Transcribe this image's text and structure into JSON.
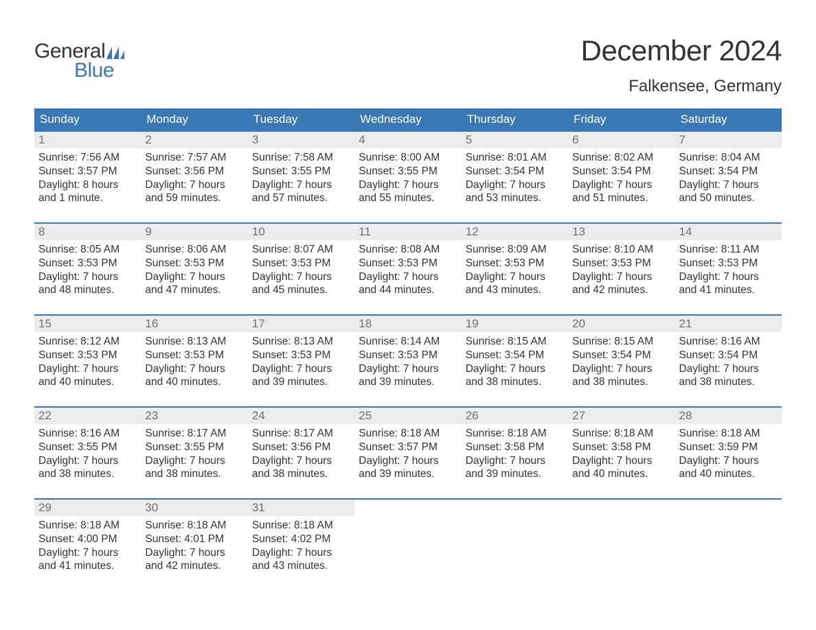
{
  "logo": {
    "text_top": "General",
    "text_bottom": "Blue",
    "flag_color": "#3a78b5"
  },
  "title": "December 2024",
  "location": "Falkensee, Germany",
  "colors": {
    "header_bg": "#3a78b5",
    "header_text": "#ffffff",
    "daynum_bg": "#ececec",
    "daynum_text": "#6f6f6f",
    "body_text": "#333333",
    "row_border": "#3a78b5",
    "page_bg": "#ffffff"
  },
  "typography": {
    "title_fontsize": 42,
    "location_fontsize": 24,
    "weekday_fontsize": 17,
    "daynum_fontsize": 17,
    "body_fontsize": 15.5
  },
  "weekdays": [
    "Sunday",
    "Monday",
    "Tuesday",
    "Wednesday",
    "Thursday",
    "Friday",
    "Saturday"
  ],
  "weeks": [
    [
      {
        "day": "1",
        "sunrise": "Sunrise: 7:56 AM",
        "sunset": "Sunset: 3:57 PM",
        "dl1": "Daylight: 8 hours",
        "dl2": "and 1 minute."
      },
      {
        "day": "2",
        "sunrise": "Sunrise: 7:57 AM",
        "sunset": "Sunset: 3:56 PM",
        "dl1": "Daylight: 7 hours",
        "dl2": "and 59 minutes."
      },
      {
        "day": "3",
        "sunrise": "Sunrise: 7:58 AM",
        "sunset": "Sunset: 3:55 PM",
        "dl1": "Daylight: 7 hours",
        "dl2": "and 57 minutes."
      },
      {
        "day": "4",
        "sunrise": "Sunrise: 8:00 AM",
        "sunset": "Sunset: 3:55 PM",
        "dl1": "Daylight: 7 hours",
        "dl2": "and 55 minutes."
      },
      {
        "day": "5",
        "sunrise": "Sunrise: 8:01 AM",
        "sunset": "Sunset: 3:54 PM",
        "dl1": "Daylight: 7 hours",
        "dl2": "and 53 minutes."
      },
      {
        "day": "6",
        "sunrise": "Sunrise: 8:02 AM",
        "sunset": "Sunset: 3:54 PM",
        "dl1": "Daylight: 7 hours",
        "dl2": "and 51 minutes."
      },
      {
        "day": "7",
        "sunrise": "Sunrise: 8:04 AM",
        "sunset": "Sunset: 3:54 PM",
        "dl1": "Daylight: 7 hours",
        "dl2": "and 50 minutes."
      }
    ],
    [
      {
        "day": "8",
        "sunrise": "Sunrise: 8:05 AM",
        "sunset": "Sunset: 3:53 PM",
        "dl1": "Daylight: 7 hours",
        "dl2": "and 48 minutes."
      },
      {
        "day": "9",
        "sunrise": "Sunrise: 8:06 AM",
        "sunset": "Sunset: 3:53 PM",
        "dl1": "Daylight: 7 hours",
        "dl2": "and 47 minutes."
      },
      {
        "day": "10",
        "sunrise": "Sunrise: 8:07 AM",
        "sunset": "Sunset: 3:53 PM",
        "dl1": "Daylight: 7 hours",
        "dl2": "and 45 minutes."
      },
      {
        "day": "11",
        "sunrise": "Sunrise: 8:08 AM",
        "sunset": "Sunset: 3:53 PM",
        "dl1": "Daylight: 7 hours",
        "dl2": "and 44 minutes."
      },
      {
        "day": "12",
        "sunrise": "Sunrise: 8:09 AM",
        "sunset": "Sunset: 3:53 PM",
        "dl1": "Daylight: 7 hours",
        "dl2": "and 43 minutes."
      },
      {
        "day": "13",
        "sunrise": "Sunrise: 8:10 AM",
        "sunset": "Sunset: 3:53 PM",
        "dl1": "Daylight: 7 hours",
        "dl2": "and 42 minutes."
      },
      {
        "day": "14",
        "sunrise": "Sunrise: 8:11 AM",
        "sunset": "Sunset: 3:53 PM",
        "dl1": "Daylight: 7 hours",
        "dl2": "and 41 minutes."
      }
    ],
    [
      {
        "day": "15",
        "sunrise": "Sunrise: 8:12 AM",
        "sunset": "Sunset: 3:53 PM",
        "dl1": "Daylight: 7 hours",
        "dl2": "and 40 minutes."
      },
      {
        "day": "16",
        "sunrise": "Sunrise: 8:13 AM",
        "sunset": "Sunset: 3:53 PM",
        "dl1": "Daylight: 7 hours",
        "dl2": "and 40 minutes."
      },
      {
        "day": "17",
        "sunrise": "Sunrise: 8:13 AM",
        "sunset": "Sunset: 3:53 PM",
        "dl1": "Daylight: 7 hours",
        "dl2": "and 39 minutes."
      },
      {
        "day": "18",
        "sunrise": "Sunrise: 8:14 AM",
        "sunset": "Sunset: 3:53 PM",
        "dl1": "Daylight: 7 hours",
        "dl2": "and 39 minutes."
      },
      {
        "day": "19",
        "sunrise": "Sunrise: 8:15 AM",
        "sunset": "Sunset: 3:54 PM",
        "dl1": "Daylight: 7 hours",
        "dl2": "and 38 minutes."
      },
      {
        "day": "20",
        "sunrise": "Sunrise: 8:15 AM",
        "sunset": "Sunset: 3:54 PM",
        "dl1": "Daylight: 7 hours",
        "dl2": "and 38 minutes."
      },
      {
        "day": "21",
        "sunrise": "Sunrise: 8:16 AM",
        "sunset": "Sunset: 3:54 PM",
        "dl1": "Daylight: 7 hours",
        "dl2": "and 38 minutes."
      }
    ],
    [
      {
        "day": "22",
        "sunrise": "Sunrise: 8:16 AM",
        "sunset": "Sunset: 3:55 PM",
        "dl1": "Daylight: 7 hours",
        "dl2": "and 38 minutes."
      },
      {
        "day": "23",
        "sunrise": "Sunrise: 8:17 AM",
        "sunset": "Sunset: 3:55 PM",
        "dl1": "Daylight: 7 hours",
        "dl2": "and 38 minutes."
      },
      {
        "day": "24",
        "sunrise": "Sunrise: 8:17 AM",
        "sunset": "Sunset: 3:56 PM",
        "dl1": "Daylight: 7 hours",
        "dl2": "and 38 minutes."
      },
      {
        "day": "25",
        "sunrise": "Sunrise: 8:18 AM",
        "sunset": "Sunset: 3:57 PM",
        "dl1": "Daylight: 7 hours",
        "dl2": "and 39 minutes."
      },
      {
        "day": "26",
        "sunrise": "Sunrise: 8:18 AM",
        "sunset": "Sunset: 3:58 PM",
        "dl1": "Daylight: 7 hours",
        "dl2": "and 39 minutes."
      },
      {
        "day": "27",
        "sunrise": "Sunrise: 8:18 AM",
        "sunset": "Sunset: 3:58 PM",
        "dl1": "Daylight: 7 hours",
        "dl2": "and 40 minutes."
      },
      {
        "day": "28",
        "sunrise": "Sunrise: 8:18 AM",
        "sunset": "Sunset: 3:59 PM",
        "dl1": "Daylight: 7 hours",
        "dl2": "and 40 minutes."
      }
    ],
    [
      {
        "day": "29",
        "sunrise": "Sunrise: 8:18 AM",
        "sunset": "Sunset: 4:00 PM",
        "dl1": "Daylight: 7 hours",
        "dl2": "and 41 minutes."
      },
      {
        "day": "30",
        "sunrise": "Sunrise: 8:18 AM",
        "sunset": "Sunset: 4:01 PM",
        "dl1": "Daylight: 7 hours",
        "dl2": "and 42 minutes."
      },
      {
        "day": "31",
        "sunrise": "Sunrise: 8:18 AM",
        "sunset": "Sunset: 4:02 PM",
        "dl1": "Daylight: 7 hours",
        "dl2": "and 43 minutes."
      },
      null,
      null,
      null,
      null
    ]
  ]
}
